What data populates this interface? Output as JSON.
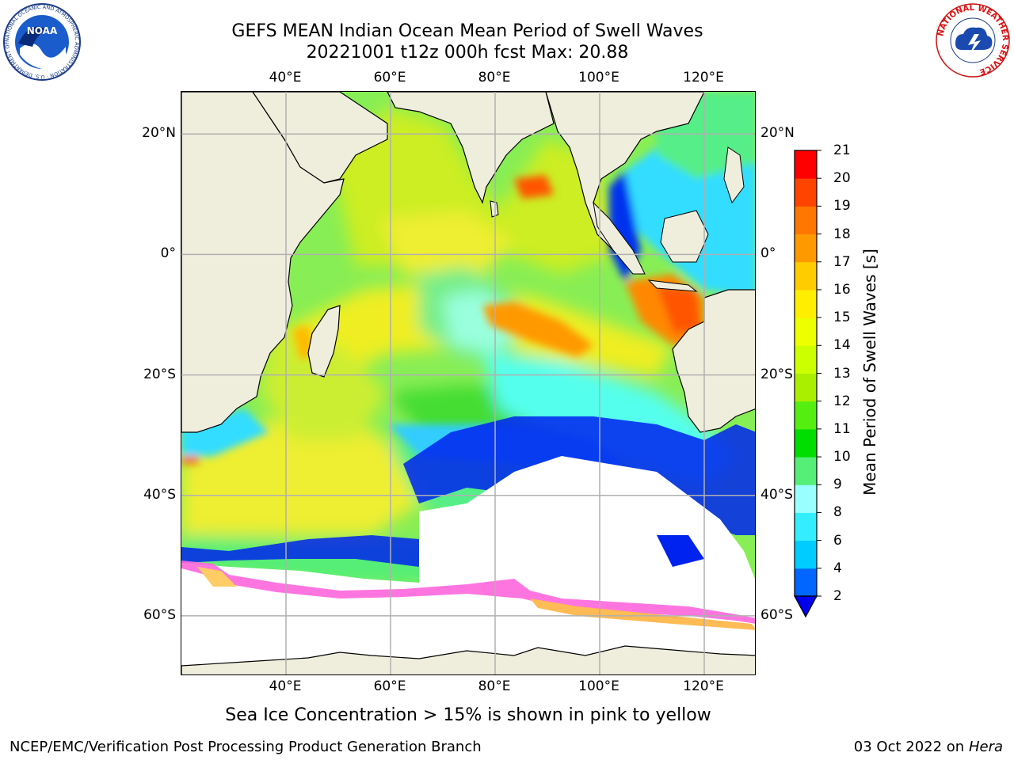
{
  "title": {
    "line1": "GEFS MEAN Indian Ocean Mean Period of Swell Waves",
    "line2": "20221001 t12z 000h fcst   Max: 20.88"
  },
  "map": {
    "lon_range": [
      20,
      130
    ],
    "lat_range": [
      -70,
      27
    ],
    "lon_ticks": [
      {
        "value": 40,
        "label": "40°E"
      },
      {
        "value": 60,
        "label": "60°E"
      },
      {
        "value": 80,
        "label": "80°E"
      },
      {
        "value": 100,
        "label": "100°E"
      },
      {
        "value": 120,
        "label": "120°E"
      }
    ],
    "lat_ticks": [
      {
        "value": 20,
        "label": "20°N"
      },
      {
        "value": 0,
        "label": "0°"
      },
      {
        "value": -20,
        "label": "20°S"
      },
      {
        "value": -40,
        "label": "40°S"
      },
      {
        "value": -60,
        "label": "60°S"
      }
    ],
    "land_color": "#efeedd",
    "grid_color": "#b0b0b0"
  },
  "colorbar": {
    "label": "Mean Period of Swell Waves [s]",
    "levels": [
      2,
      4,
      6,
      8,
      9,
      10,
      11,
      12,
      13,
      14,
      15,
      16,
      17,
      18,
      19,
      20,
      21
    ],
    "tick_labels": [
      "2",
      "4",
      "6",
      "8",
      "9",
      "10",
      "11",
      "12",
      "13",
      "14",
      "15",
      "16",
      "17",
      "18",
      "19",
      "20",
      "21"
    ],
    "colors": [
      "#0066ff",
      "#00ccff",
      "#33eeff",
      "#99ffff",
      "#55ee77",
      "#00dd00",
      "#55ee11",
      "#aaee00",
      "#ccff00",
      "#eeff00",
      "#ffee00",
      "#ffcc00",
      "#ff9900",
      "#ff7700",
      "#ff4400",
      "#ff0000"
    ],
    "extend_color": "#0000ee"
  },
  "ice_note": "Sea Ice Concentration > 15% is shown in pink to yellow",
  "footer": {
    "left": "NCEP/EMC/Verification Post Processing Product Generation Branch",
    "date": "03 Oct 2022 on ",
    "machine": "Hera"
  },
  "logos": {
    "noaa_text": "NOAA",
    "noaa_ring": "NATIONAL OCEANIC AND ATMOSPHERIC ADMINISTRATION · U.S. DEPARTMENT OF COMMERCE ·",
    "nws_ring": "NATIONAL WEATHER SERVICE"
  }
}
